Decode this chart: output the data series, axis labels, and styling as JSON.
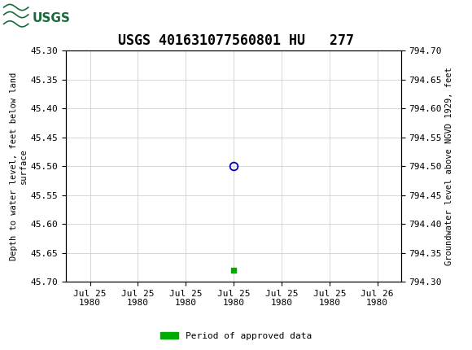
{
  "title": "USGS 401631077560801 HU   277",
  "ylabel_left": "Depth to water level, feet below land\nsurface",
  "ylabel_right": "Groundwater level above NGVD 1929, feet",
  "ylim_left": [
    45.7,
    45.3
  ],
  "ylim_right": [
    794.3,
    794.7
  ],
  "yticks_left": [
    45.3,
    45.35,
    45.4,
    45.45,
    45.5,
    45.55,
    45.6,
    45.65,
    45.7
  ],
  "yticks_right": [
    794.7,
    794.65,
    794.6,
    794.55,
    794.5,
    794.45,
    794.4,
    794.35,
    794.3
  ],
  "data_point_x": 3.0,
  "data_point_y": 45.5,
  "green_marker_x": 3.0,
  "green_marker_y": 45.68,
  "open_circle_color": "#0000bb",
  "green_color": "#00aa00",
  "background_color": "#ffffff",
  "header_bg_color": "#1a6b3c",
  "header_logo_bg": "#ffffff",
  "grid_color": "#c8c8c8",
  "tick_label_fontsize": 8,
  "title_fontsize": 12,
  "legend_label": "Period of approved data",
  "xlabel_ticks": [
    "Jul 25\n1980",
    "Jul 25\n1980",
    "Jul 25\n1980",
    "Jul 25\n1980",
    "Jul 25\n1980",
    "Jul 25\n1980",
    "Jul 26\n1980"
  ],
  "plot_bg_color": "#ffffff",
  "num_xticks": 7,
  "xlim": [
    -0.5,
    6.5
  ]
}
